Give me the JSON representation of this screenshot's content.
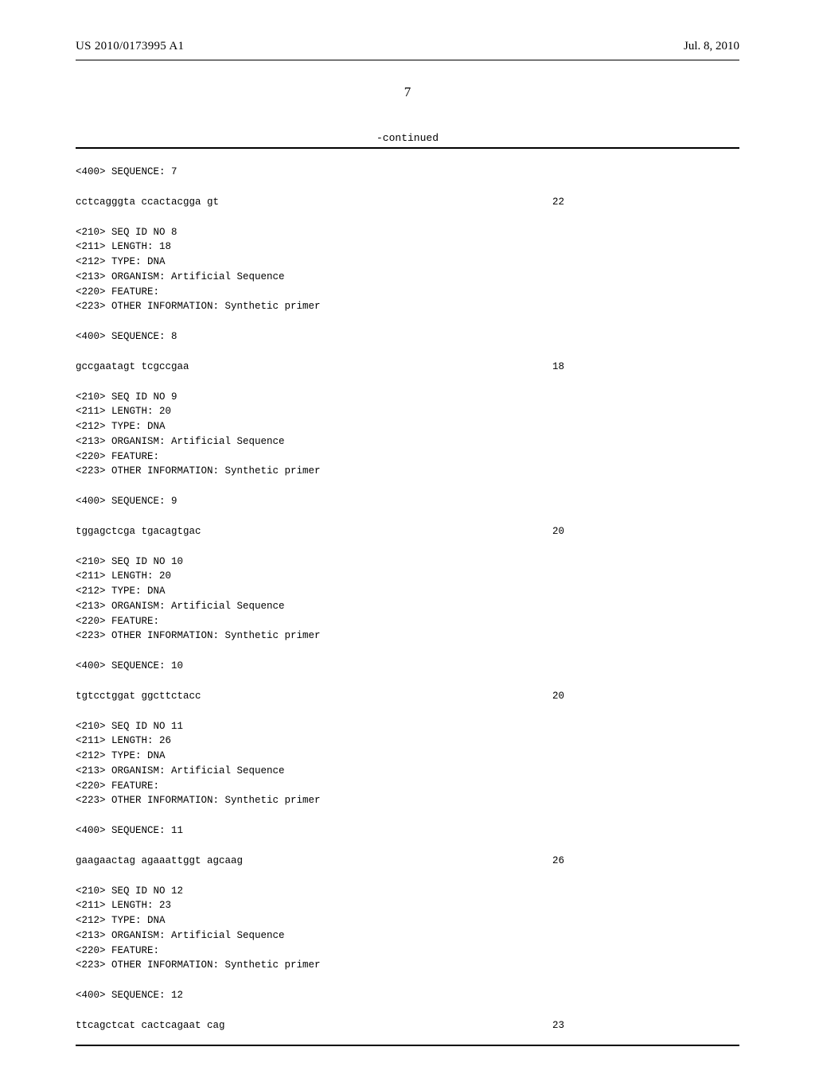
{
  "header": {
    "pub_number": "US 2010/0173995 A1",
    "pub_date": "Jul. 8, 2010"
  },
  "page_number": "7",
  "continued_label": "-continued",
  "sequences": [
    {
      "pre": "<400> SEQUENCE: 7",
      "seq": "cctcagggta ccactacgga gt",
      "len": "22"
    },
    {
      "meta": [
        "<210> SEQ ID NO 8",
        "<211> LENGTH: 18",
        "<212> TYPE: DNA",
        "<213> ORGANISM: Artificial Sequence",
        "<220> FEATURE:",
        "<223> OTHER INFORMATION: Synthetic primer"
      ],
      "pre": "<400> SEQUENCE: 8",
      "seq": "gccgaatagt tcgccgaa",
      "len": "18"
    },
    {
      "meta": [
        "<210> SEQ ID NO 9",
        "<211> LENGTH: 20",
        "<212> TYPE: DNA",
        "<213> ORGANISM: Artificial Sequence",
        "<220> FEATURE:",
        "<223> OTHER INFORMATION: Synthetic primer"
      ],
      "pre": "<400> SEQUENCE: 9",
      "seq": "tggagctcga tgacagtgac",
      "len": "20"
    },
    {
      "meta": [
        "<210> SEQ ID NO 10",
        "<211> LENGTH: 20",
        "<212> TYPE: DNA",
        "<213> ORGANISM: Artificial Sequence",
        "<220> FEATURE:",
        "<223> OTHER INFORMATION: Synthetic primer"
      ],
      "pre": "<400> SEQUENCE: 10",
      "seq": "tgtcctggat ggcttctacc",
      "len": "20"
    },
    {
      "meta": [
        "<210> SEQ ID NO 11",
        "<211> LENGTH: 26",
        "<212> TYPE: DNA",
        "<213> ORGANISM: Artificial Sequence",
        "<220> FEATURE:",
        "<223> OTHER INFORMATION: Synthetic primer"
      ],
      "pre": "<400> SEQUENCE: 11",
      "seq": "gaagaactag agaaattggt agcaag",
      "len": "26"
    },
    {
      "meta": [
        "<210> SEQ ID NO 12",
        "<211> LENGTH: 23",
        "<212> TYPE: DNA",
        "<213> ORGANISM: Artificial Sequence",
        "<220> FEATURE:",
        "<223> OTHER INFORMATION: Synthetic primer"
      ],
      "pre": "<400> SEQUENCE: 12",
      "seq": "ttcagctcat cactcagaat cag",
      "len": "23"
    }
  ]
}
